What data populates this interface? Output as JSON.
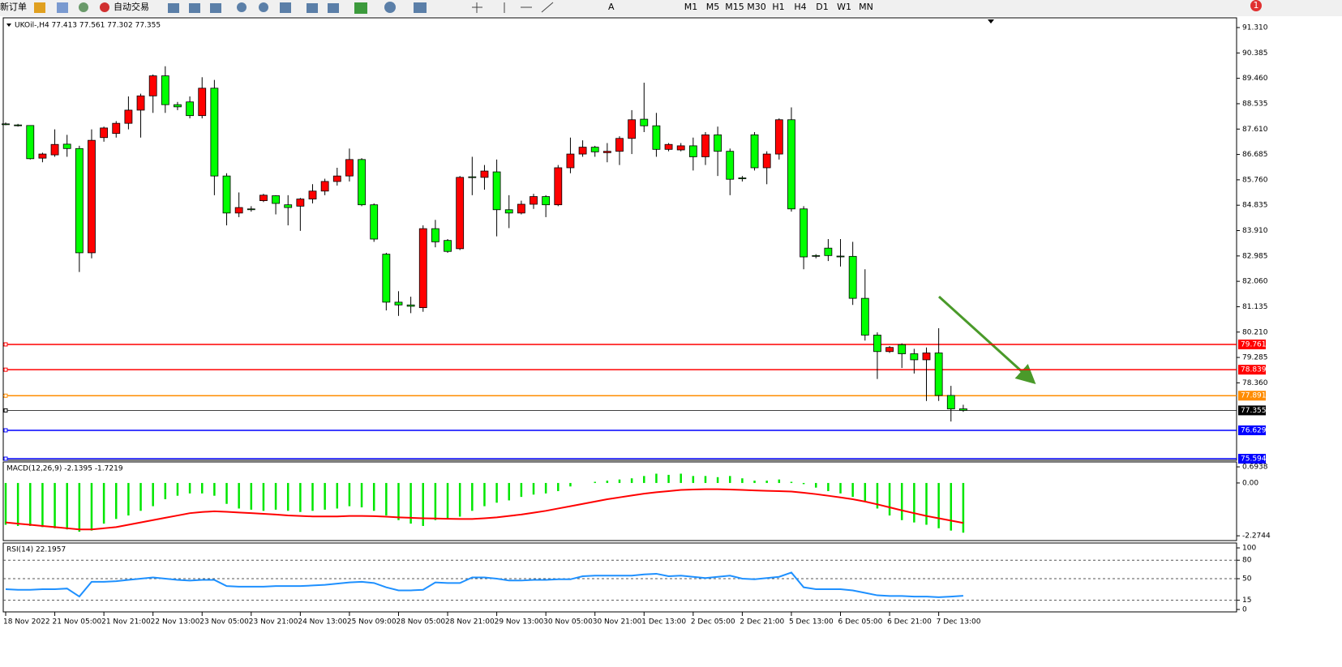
{
  "toolbar": {
    "buttons": [
      "新订单",
      "自动交易"
    ],
    "timeframes": [
      "M1",
      "M5",
      "M15",
      "M30",
      "H1",
      "H4",
      "D1",
      "W1",
      "MN"
    ],
    "tools": [
      "A"
    ],
    "notification": "1"
  },
  "chart_data": [
    {
      "type": "candlestick",
      "title": "UKOil-,H4 77.413 77.561 77.302 77.355",
      "up_color": "#ff0000",
      "down_color": "#00ff00",
      "categories": [
        "18 Nov 2022",
        null,
        null,
        null,
        "21 Nov 05:00",
        null,
        null,
        null,
        "21 Nov 21:00",
        null,
        null,
        null,
        "22 Nov 13:00",
        null,
        null,
        null,
        "23 Nov 05:00",
        null,
        null,
        null,
        "23 Nov 21:00",
        null,
        null,
        null,
        "24 Nov 13:00",
        null,
        null,
        null,
        "25 Nov 09:00",
        null,
        null,
        null,
        "28 Nov 05:00",
        null,
        null,
        null,
        "28 Nov 21:00",
        null,
        null,
        null,
        "29 Nov 13:00",
        null,
        null,
        null,
        "30 Nov 05:00",
        null,
        null,
        null,
        "30 Nov 21:00",
        null,
        null,
        null,
        "1 Dec 13:00",
        null,
        null,
        null,
        "2 Dec 05:00",
        null,
        null,
        null,
        "2 Dec 21:00",
        null,
        null,
        null,
        "5 Dec 13:00",
        null,
        null,
        null,
        "6 Dec 05:00",
        null,
        null,
        null,
        "6 Dec 21:00",
        null,
        null,
        null,
        "7 Dec 13:00",
        null,
        null
      ],
      "open": [
        87.8,
        87.76,
        87.74,
        86.55,
        86.67,
        87.06,
        86.9,
        83.1,
        87.3,
        87.45,
        87.82,
        88.3,
        88.82,
        89.55,
        88.5,
        88.6,
        88.1,
        89.1,
        85.9,
        84.55,
        84.7,
        85.0,
        85.18,
        84.85,
        84.8,
        85.06,
        85.35,
        85.7,
        85.9,
        86.5,
        84.85,
        83.05,
        81.3,
        81.2,
        81.1,
        83.98,
        83.55,
        83.25,
        85.87,
        85.85,
        86.05,
        84.67,
        84.55,
        84.87,
        85.15,
        84.85,
        86.2,
        86.7,
        86.95,
        86.75,
        86.8,
        87.27,
        87.97,
        87.73,
        86.87,
        86.85,
        87.0,
        86.6,
        87.4,
        86.8,
        85.83,
        87.4,
        86.2,
        86.7,
        87.95,
        84.7,
        83.0,
        83.27,
        82.98,
        82.97,
        81.44,
        80.1,
        79.5,
        79.75,
        79.42,
        79.2,
        79.45,
        77.9,
        77.413
      ],
      "high": [
        87.85,
        87.8,
        87.75,
        86.75,
        87.6,
        87.4,
        87.0,
        87.6,
        87.7,
        87.9,
        88.8,
        88.9,
        89.6,
        89.9,
        88.6,
        88.8,
        89.5,
        89.4,
        86.0,
        85.3,
        84.8,
        85.25,
        85.2,
        85.2,
        85.1,
        85.6,
        85.8,
        86.2,
        86.9,
        86.55,
        84.9,
        83.1,
        81.7,
        81.5,
        84.1,
        84.3,
        83.6,
        85.9,
        86.6,
        86.3,
        86.5,
        85.2,
        85.0,
        85.25,
        85.2,
        86.3,
        87.3,
        87.2,
        87.0,
        87.1,
        87.35,
        88.3,
        89.3,
        88.2,
        87.1,
        87.1,
        87.3,
        87.5,
        87.7,
        86.9,
        85.9,
        87.5,
        86.8,
        88.0,
        88.4,
        84.8,
        83.05,
        83.6,
        83.6,
        83.5,
        82.5,
        80.2,
        79.7,
        79.8,
        79.6,
        79.65,
        80.35,
        78.25,
        77.561
      ],
      "low": [
        87.75,
        87.7,
        86.5,
        86.4,
        86.6,
        86.6,
        82.4,
        82.9,
        87.15,
        87.3,
        87.6,
        87.3,
        88.2,
        88.2,
        88.3,
        88.0,
        88.0,
        85.2,
        84.1,
        84.4,
        84.6,
        84.95,
        84.5,
        84.1,
        83.9,
        84.9,
        85.2,
        85.55,
        85.7,
        84.8,
        83.5,
        81.0,
        80.8,
        80.9,
        80.95,
        83.3,
        83.1,
        83.2,
        85.2,
        85.4,
        83.7,
        84.0,
        84.5,
        84.7,
        84.4,
        84.8,
        86.0,
        86.6,
        86.6,
        86.4,
        86.3,
        86.7,
        87.5,
        86.6,
        86.8,
        86.8,
        86.1,
        86.3,
        85.9,
        85.2,
        85.7,
        86.1,
        85.6,
        86.5,
        84.6,
        82.5,
        82.9,
        82.8,
        82.6,
        81.2,
        79.9,
        78.5,
        79.45,
        78.9,
        78.7,
        77.7,
        77.7,
        76.95,
        77.302
      ],
      "close": [
        87.8,
        87.76,
        86.53,
        86.7,
        87.05,
        86.9,
        83.1,
        87.2,
        87.65,
        87.82,
        88.3,
        88.82,
        89.55,
        88.5,
        88.42,
        88.1,
        89.1,
        85.9,
        84.55,
        84.75,
        84.7,
        85.2,
        84.9,
        84.75,
        85.06,
        85.35,
        85.7,
        85.9,
        86.5,
        84.85,
        83.6,
        81.3,
        81.2,
        81.15,
        83.98,
        83.5,
        83.15,
        85.85,
        85.87,
        86.08,
        84.67,
        84.55,
        84.87,
        85.15,
        84.85,
        86.2,
        86.7,
        86.95,
        86.78,
        86.8,
        87.27,
        87.95,
        87.73,
        86.87,
        87.05,
        87.0,
        86.6,
        87.4,
        86.8,
        85.78,
        85.83,
        86.2,
        86.7,
        87.95,
        84.7,
        82.95,
        83.0,
        83.0,
        82.98,
        81.44,
        80.1,
        79.5,
        79.65,
        79.42,
        79.2,
        79.45,
        77.9,
        77.41,
        77.355
      ],
      "ylim": [
        75.535,
        91.665
      ],
      "yticks": [
        {
          "value": 91.31,
          "label": "91.310"
        },
        90.385,
        {
          "value": 89.46,
          "label": "89.460"
        },
        88.535,
        {
          "value": 87.61,
          "label": "87.610"
        },
        86.685,
        {
          "value": 85.76,
          "label": "85.760"
        },
        84.835,
        {
          "value": 83.91,
          "label": "83.910"
        },
        82.985,
        {
          "value": 82.06,
          "label": "82.060"
        },
        81.135,
        {
          "value": 80.21,
          "label": "80.210"
        },
        79.285,
        {
          "value": 78.36,
          "label": "78.360"
        }
      ],
      "levels": [
        {
          "value": 79.761,
          "color": "#ff0000"
        },
        {
          "value": 78.839,
          "color": "#ff0000"
        },
        {
          "value": 77.891,
          "color": "#ff8c00"
        },
        {
          "value": 77.355,
          "color": "#000000"
        },
        {
          "value": 76.629,
          "color": "#0000ff"
        },
        {
          "value": 75.594,
          "color": "#0000ff"
        }
      ]
    },
    {
      "type": "macd",
      "title": "MACD(12,26,9) -2.1395 -1.7219",
      "series": [
        {
          "type": "bar",
          "color": "#00e600",
          "values": [
            -1.8,
            -1.85,
            -1.85,
            -1.9,
            -1.95,
            -2.0,
            -2.1,
            -2.05,
            -1.75,
            -1.55,
            -1.4,
            -1.2,
            -1.0,
            -0.7,
            -0.55,
            -0.45,
            -0.45,
            -0.55,
            -0.9,
            -1.1,
            -1.15,
            -1.2,
            -1.15,
            -1.2,
            -1.25,
            -1.2,
            -1.15,
            -1.1,
            -1.0,
            -1.05,
            -1.2,
            -1.4,
            -1.6,
            -1.75,
            -1.85,
            -1.6,
            -1.55,
            -1.45,
            -1.2,
            -1.0,
            -0.85,
            -0.75,
            -0.6,
            -0.5,
            -0.45,
            -0.35,
            -0.15,
            0.0,
            0.05,
            0.1,
            0.15,
            0.2,
            0.3,
            0.4,
            0.35,
            0.4,
            0.3,
            0.3,
            0.25,
            0.3,
            0.2,
            0.1,
            0.1,
            0.15,
            0.05,
            -0.05,
            -0.2,
            -0.35,
            -0.45,
            -0.6,
            -0.8,
            -1.1,
            -1.4,
            -1.6,
            -1.7,
            -1.8,
            -1.95,
            -2.05,
            -2.14
          ]
        },
        {
          "type": "line",
          "color": "#ff0000",
          "values": [
            -1.7,
            -1.75,
            -1.8,
            -1.85,
            -1.9,
            -1.95,
            -2.0,
            -2.0,
            -1.95,
            -1.9,
            -1.8,
            -1.7,
            -1.6,
            -1.5,
            -1.4,
            -1.3,
            -1.25,
            -1.22,
            -1.24,
            -1.27,
            -1.3,
            -1.33,
            -1.36,
            -1.4,
            -1.42,
            -1.44,
            -1.44,
            -1.44,
            -1.42,
            -1.42,
            -1.43,
            -1.45,
            -1.48,
            -1.5,
            -1.52,
            -1.53,
            -1.54,
            -1.55,
            -1.55,
            -1.52,
            -1.48,
            -1.42,
            -1.36,
            -1.28,
            -1.2,
            -1.1,
            -1.0,
            -0.9,
            -0.8,
            -0.7,
            -0.62,
            -0.54,
            -0.46,
            -0.4,
            -0.35,
            -0.3,
            -0.28,
            -0.27,
            -0.27,
            -0.28,
            -0.3,
            -0.32,
            -0.34,
            -0.35,
            -0.37,
            -0.42,
            -0.48,
            -0.55,
            -0.62,
            -0.7,
            -0.8,
            -0.92,
            -1.05,
            -1.18,
            -1.3,
            -1.42,
            -1.52,
            -1.62,
            -1.72
          ]
        }
      ],
      "ylim": [
        -2.48,
        0.87
      ],
      "yticks": [
        0.6938,
        {
          "value": 0,
          "label": "0.00"
        },
        -2.2744
      ]
    },
    {
      "type": "line",
      "title": "RSI(14) 22.1957",
      "color": "#1e90ff",
      "values": [
        33,
        32,
        32,
        33,
        33,
        34,
        21,
        45,
        45,
        46,
        48,
        50,
        52,
        50,
        48,
        47,
        48,
        48,
        38,
        37,
        37,
        37,
        38,
        38,
        38,
        39,
        40,
        42,
        44,
        45,
        43,
        36,
        31,
        31,
        32,
        44,
        43,
        43,
        52,
        52,
        50,
        47,
        47,
        48,
        48,
        49,
        49,
        54,
        55,
        55,
        55,
        55,
        57,
        58,
        54,
        55,
        53,
        51,
        53,
        55,
        50,
        49,
        51,
        53,
        60,
        36,
        33,
        33,
        33,
        31,
        27,
        23,
        22,
        22,
        21,
        21,
        20,
        21,
        22.1957
      ],
      "ylim": [
        -3.9,
        105.3
      ],
      "yticks": [
        100,
        80,
        50,
        15,
        0
      ],
      "grid": "dashed"
    }
  ]
}
